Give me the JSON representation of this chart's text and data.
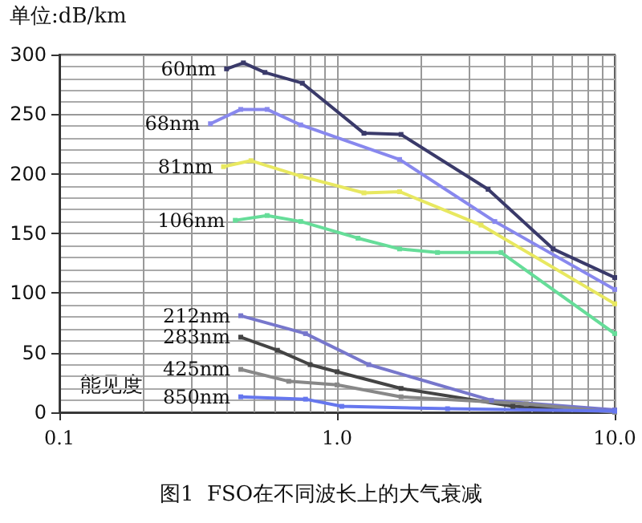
{
  "chart_data": {
    "type": "line",
    "title": "图1  FSO在不同波长上的大气衰减",
    "ylabel": "单位:dB/km",
    "xlabel": "能见度",
    "log": "x",
    "xlim": [
      0.1,
      10
    ],
    "xticks": [
      {
        "value": 0.1,
        "label": "0.1"
      },
      {
        "value": 1,
        "label": "1.0"
      },
      {
        "value": 10,
        "label": "10.0"
      }
    ],
    "ylim": [
      0,
      300
    ],
    "yticks": [
      0,
      50,
      100,
      150,
      200,
      250,
      300
    ],
    "grid": true,
    "legend": false,
    "marker": "square",
    "line_style": "solid",
    "series": [
      {
        "name": "60nm",
        "color": "#3a3a6a",
        "x": [
          0.4,
          0.46,
          0.55,
          0.75,
          1.25,
          1.7,
          3.5,
          6,
          10
        ],
        "values": [
          288,
          293,
          285,
          276,
          234,
          233,
          187,
          137,
          113
        ]
      },
      {
        "name": "68nm",
        "color": "#8888ee",
        "x": [
          0.35,
          0.45,
          0.56,
          0.74,
          1.68,
          3.7,
          10
        ],
        "values": [
          242,
          254,
          254,
          241,
          212,
          160,
          103
        ]
      },
      {
        "name": "81nm",
        "color": "#e8e860",
        "x": [
          0.39,
          0.49,
          0.74,
          1.25,
          1.68,
          3.3,
          10
        ],
        "values": [
          206,
          211,
          198,
          184,
          185,
          157,
          91
        ]
      },
      {
        "name": "106nm",
        "color": "#66dd99",
        "x": [
          0.43,
          0.56,
          0.74,
          1.19,
          1.68,
          2.3,
          3.9,
          10
        ],
        "values": [
          161,
          165,
          160,
          146,
          137,
          134,
          134,
          66
        ]
      },
      {
        "name": "212nm",
        "color": "#7777cc",
        "x": [
          0.45,
          0.77,
          1.3,
          3.6,
          10
        ],
        "values": [
          81,
          66,
          40,
          10,
          2
        ]
      },
      {
        "name": "283nm",
        "color": "#444444",
        "x": [
          0.45,
          0.61,
          0.8,
          1.0,
          1.7,
          4.3,
          10
        ],
        "values": [
          63,
          52,
          40,
          34,
          20,
          5,
          0
        ]
      },
      {
        "name": "425nm",
        "color": "#888888",
        "x": [
          0.45,
          0.67,
          1.0,
          1.7,
          4.8,
          10
        ],
        "values": [
          36,
          26,
          23,
          13,
          7,
          0
        ]
      },
      {
        "name": "850nm",
        "color": "#6677ee",
        "x": [
          0.45,
          0.77,
          1.04,
          2.5,
          10
        ],
        "values": [
          13,
          11,
          5,
          3,
          1
        ]
      }
    ]
  }
}
